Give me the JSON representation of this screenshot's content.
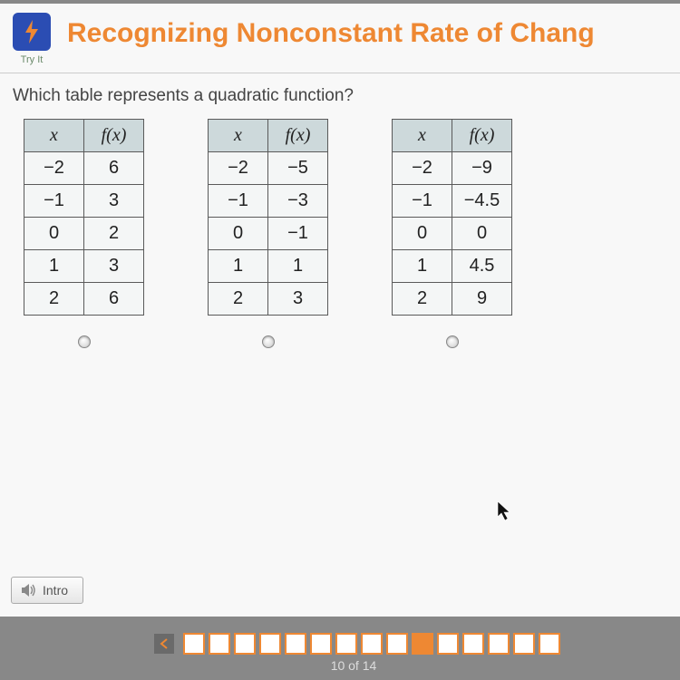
{
  "header": {
    "try_label": "Try It",
    "title": "Recognizing Nonconstant Rate of Chang"
  },
  "question": "Which table represents a quadratic function?",
  "tables": [
    {
      "col_x": "x",
      "col_f": "f(x)",
      "rows": [
        [
          "−2",
          "6"
        ],
        [
          "−1",
          "3"
        ],
        [
          "0",
          "2"
        ],
        [
          "1",
          "3"
        ],
        [
          "2",
          "6"
        ]
      ]
    },
    {
      "col_x": "x",
      "col_f": "f(x)",
      "rows": [
        [
          "−2",
          "−5"
        ],
        [
          "−1",
          "−3"
        ],
        [
          "0",
          "−1"
        ],
        [
          "1",
          "1"
        ],
        [
          "2",
          "3"
        ]
      ]
    },
    {
      "col_x": "x",
      "col_f": "f(x)",
      "rows": [
        [
          "−2",
          "−9"
        ],
        [
          "−1",
          "−4.5"
        ],
        [
          "0",
          "0"
        ],
        [
          "1",
          "4.5"
        ],
        [
          "2",
          "9"
        ]
      ]
    }
  ],
  "intro_label": "Intro",
  "progress": {
    "current": 10,
    "total": 14,
    "counter_text": "10 of 14",
    "boxes_shown": 15
  },
  "colors": {
    "accent": "#ee8833",
    "logo_bg": "#2b4db3",
    "table_header_bg": "#cdd9db",
    "table_cell_bg": "#f4f6f6"
  }
}
